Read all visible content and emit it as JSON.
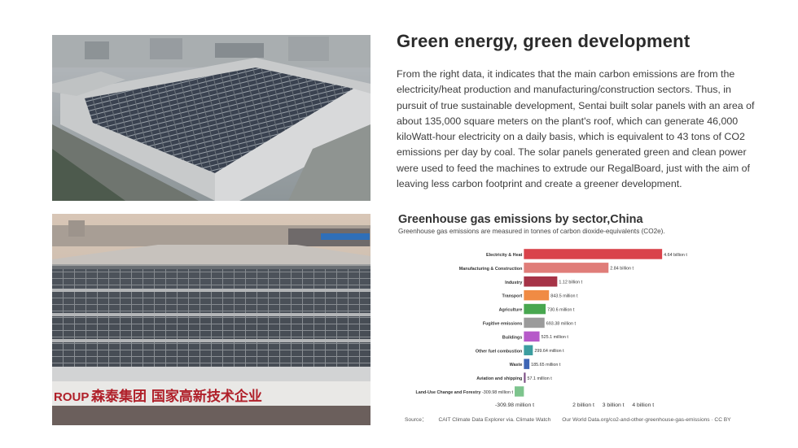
{
  "heading": "Green energy, green development",
  "paragraph": "From the right data, it indicates that the main carbon emissions are from the electricity/heat production and manufacturing/construction sectors. Thus, in pursuit of true sustainable development, Sentai built solar panels with an area of about 135,000 square meters on the plant's roof, which can generate 46,000 kiloWatt-hour electricity on a daily basis, which is equivalent to 43 tons of CO2 emissions per day by coal. The solar panels generated green and clean power were used to feed the machines to extrude our RegalBoard, just with the aim of leaving less carbon footprint and create a greener development.",
  "photos": {
    "top": {
      "kind": "aerial photo of factory roofs covered with solar panels"
    },
    "bottom": {
      "kind": "photo of solar panel roof with factory sign",
      "sign_text_latin": "ROUP",
      "sign_text_cjk": "森泰集团 国家高新技术企业"
    }
  },
  "chart_data": {
    "type": "bar",
    "orientation": "horizontal",
    "title": "Greenhouse gas emissions by sector,China",
    "subtitle": "Greenhouse gas emissions are measured in tonnes of carbon dioxide-equivalents (CO2e).",
    "categories": [
      "Electricity & Heat",
      "Manufacturing & Construction",
      "Industry",
      "Transport",
      "Agriculture",
      "Fugitive emissions",
      "Buildings",
      "Other fuel combustion",
      "Waste",
      "Aviation and shipping",
      "Land-Use Change and Forestry"
    ],
    "values": [
      4.64,
      2.84,
      1.12,
      0.8435,
      0.7306,
      0.69338,
      0.5251,
      0.29964,
      0.18565,
      0.0571,
      -0.30998
    ],
    "value_labels": [
      "4.64 billion t",
      "2.84 billion t",
      "1.12 billion t",
      "843.5 million t",
      "730.6 million t",
      "693.38 million t",
      "525.1 million t",
      "299.64 million t",
      "185.65 million t",
      "57.1 million t",
      "-309.98 million t"
    ],
    "colors": [
      "#d9434b",
      "#e07d79",
      "#a63347",
      "#f08b44",
      "#48a74f",
      "#9b9b9b",
      "#b65ac9",
      "#3c9ea0",
      "#3e66b5",
      "#7a4b82",
      "#7dc48d"
    ],
    "x_ticks": [
      -0.30998,
      2,
      3,
      4
    ],
    "x_tick_labels": [
      "-309.98 million t",
      "2 billion t",
      "3 billion t",
      "4 billion t"
    ],
    "xlim": [
      -0.42,
      4.8
    ],
    "units": "billion tonnes CO2e",
    "grid": false
  },
  "source": {
    "label": "Source：",
    "text1": "CAIT Climate Data Explorer via. Climate Watch",
    "text2": "Our World Data.org/co2-and-other-greenhouse-gas-emissions · CC BY"
  }
}
